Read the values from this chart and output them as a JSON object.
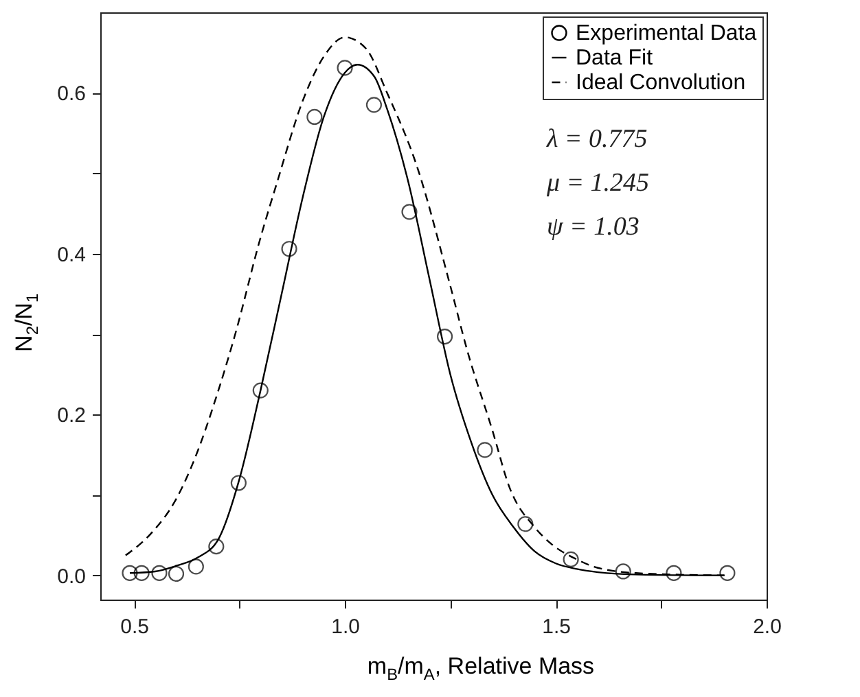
{
  "chart_data": {
    "type": "scatter",
    "xlabel": "m$_{B}$/m$_{A}$, Relative Mass",
    "ylabel": "N$_{2}$/N$_{1}$",
    "xlim": [
      0.42,
      2.0
    ],
    "ylim": [
      -0.03,
      0.7
    ],
    "xticks": [
      0.5,
      {
        "value": 0.75,
        "label": null
      },
      {
        "value": 1,
        "label": "1.0"
      },
      {
        "value": 1.25,
        "label": null
      },
      1.5,
      {
        "value": 1.75,
        "label": null
      },
      {
        "value": 2,
        "label": "2.0"
      }
    ],
    "yticks": [
      {
        "value": 0,
        "label": "0.0"
      },
      {
        "value": 0.1,
        "label": null
      },
      0.2,
      {
        "value": 0.3,
        "label": null
      },
      0.4,
      {
        "value": 0.5,
        "label": null
      },
      0.6
    ],
    "legend": "top right",
    "grid": false,
    "series": [
      {
        "name": "Experimental Data",
        "marker": "circle",
        "color": "#000000",
        "x": [
          0.49,
          0.518,
          0.56,
          0.6,
          0.647,
          0.695,
          0.748,
          0.8,
          0.868,
          0.928,
          1.0,
          1.069,
          1.153,
          1.237,
          1.332,
          1.428,
          1.536,
          1.66,
          1.78,
          1.907
        ],
        "values": [
          0.003,
          0.003,
          0.003,
          0.002,
          0.011,
          0.036,
          0.115,
          0.23,
          0.406,
          0.57,
          0.631,
          0.585,
          0.452,
          0.297,
          0.156,
          0.064,
          0.02,
          0.005,
          0.003,
          0.003
        ]
      },
      {
        "name": "Data Fit",
        "type": "line",
        "line_style": "solid",
        "color": "#000000",
        "x": [
          0.49,
          0.55,
          0.6,
          0.65,
          0.7,
          0.75,
          0.8,
          0.85,
          0.9,
          0.95,
          1.0,
          1.03,
          1.07,
          1.1,
          1.15,
          1.2,
          1.25,
          1.3,
          1.35,
          1.4,
          1.45,
          1.5,
          1.55,
          1.6,
          1.7,
          1.9
        ],
        "values": [
          0.003,
          0.005,
          0.012,
          0.022,
          0.045,
          0.12,
          0.23,
          0.35,
          0.47,
          0.57,
          0.625,
          0.635,
          0.62,
          0.58,
          0.49,
          0.37,
          0.25,
          0.165,
          0.1,
          0.06,
          0.03,
          0.015,
          0.008,
          0.004,
          0.001,
          0.0
        ]
      },
      {
        "name": "Ideal Convolution",
        "type": "line",
        "line_style": "dashed",
        "color": "#000000",
        "x": [
          0.48,
          0.54,
          0.6,
          0.64,
          0.7,
          0.74,
          0.8,
          0.84,
          0.9,
          0.95,
          1.0,
          1.05,
          1.1,
          1.17,
          1.25,
          1.29,
          1.35,
          1.39,
          1.45,
          1.49,
          1.55,
          1.59,
          1.69,
          1.9
        ],
        "values": [
          0.025,
          0.052,
          0.095,
          0.14,
          0.23,
          0.3,
          0.42,
          0.49,
          0.59,
          0.645,
          0.669,
          0.655,
          0.6,
          0.51,
          0.36,
          0.28,
          0.18,
          0.11,
          0.06,
          0.039,
          0.02,
          0.011,
          0.003,
          0.0
        ]
      }
    ],
    "annotations": [
      "λ = 0.775",
      "μ = 1.245",
      "ψ = 1.03"
    ]
  }
}
